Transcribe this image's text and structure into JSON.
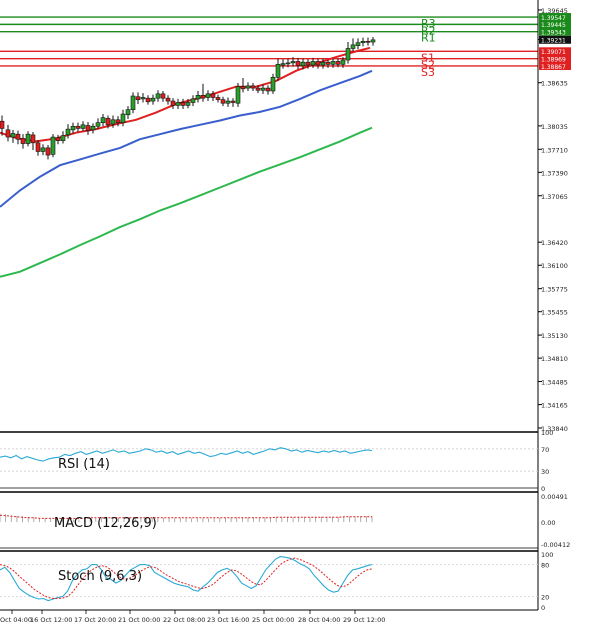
{
  "chart_data": {
    "type": "candlestick",
    "main": {
      "y_axis_ticks": [
        "1.39645",
        "1.39235",
        "1.38635",
        "1.38035",
        "1.37710",
        "1.37390",
        "1.37065",
        "1.36420",
        "1.36100",
        "1.35775",
        "1.35455",
        "1.35130",
        "1.34810",
        "1.34485",
        "1.34165",
        "1.33840"
      ],
      "current_price": "1.39231",
      "levels": [
        {
          "name": "R3",
          "value": 1.39547,
          "label": "1.39547",
          "color": "#1a8a1a"
        },
        {
          "name": "R2",
          "value": 1.39445,
          "label": "1.39445",
          "color": "#1a8a1a"
        },
        {
          "name": "R1",
          "value": 1.39343,
          "label": "1.39343",
          "color": "#1a8a1a"
        },
        {
          "name": "S1",
          "value": 1.39071,
          "label": "1.39071",
          "color": "#e02020"
        },
        {
          "name": "S2",
          "value": 1.38969,
          "label": "1.38969",
          "color": "#e02020"
        },
        {
          "name": "S3",
          "value": 1.38867,
          "label": "1.38867",
          "color": "#e02020"
        }
      ],
      "moving_averages": [
        {
          "color": "#e02020",
          "points": [
            [
              0,
              1.3794
            ],
            [
              18,
              1.3786
            ],
            [
              36,
              1.3782
            ],
            [
              56,
              1.3786
            ],
            [
              76,
              1.3794
            ],
            [
              96,
              1.3799
            ],
            [
              116,
              1.3806
            ],
            [
              136,
              1.3812
            ],
            [
              156,
              1.3822
            ],
            [
              176,
              1.3834
            ],
            [
              196,
              1.3841
            ],
            [
              216,
              1.3849
            ],
            [
              236,
              1.3858
            ],
            [
              256,
              1.3858
            ],
            [
              276,
              1.3866
            ],
            [
              296,
              1.388
            ],
            [
              316,
              1.389
            ],
            [
              336,
              1.3899
            ],
            [
              356,
              1.3907
            ],
            [
              370,
              1.3912
            ]
          ]
        },
        {
          "color": "#3a5fcd",
          "points": [
            [
              0,
              1.3691
            ],
            [
              20,
              1.3714
            ],
            [
              40,
              1.3733
            ],
            [
              60,
              1.3749
            ],
            [
              80,
              1.3757
            ],
            [
              100,
              1.3765
            ],
            [
              120,
              1.3773
            ],
            [
              140,
              1.3785
            ],
            [
              160,
              1.3792
            ],
            [
              180,
              1.3799
            ],
            [
              200,
              1.3805
            ],
            [
              220,
              1.3811
            ],
            [
              240,
              1.3818
            ],
            [
              260,
              1.3823
            ],
            [
              280,
              1.383
            ],
            [
              300,
              1.3841
            ],
            [
              320,
              1.3853
            ],
            [
              340,
              1.3863
            ],
            [
              360,
              1.3873
            ],
            [
              372,
              1.388
            ]
          ]
        },
        {
          "color": "#2db84d",
          "points": [
            [
              0,
              1.3594
            ],
            [
              20,
              1.3601
            ],
            [
              40,
              1.3613
            ],
            [
              60,
              1.3625
            ],
            [
              80,
              1.3638
            ],
            [
              100,
              1.365
            ],
            [
              120,
              1.3663
            ],
            [
              140,
              1.3674
            ],
            [
              160,
              1.3686
            ],
            [
              180,
              1.3696
            ],
            [
              200,
              1.3707
            ],
            [
              220,
              1.3718
            ],
            [
              240,
              1.3729
            ],
            [
              260,
              1.374
            ],
            [
              280,
              1.375
            ],
            [
              300,
              1.376
            ],
            [
              320,
              1.3771
            ],
            [
              340,
              1.3782
            ],
            [
              360,
              1.3794
            ],
            [
              372,
              1.3801
            ]
          ]
        }
      ],
      "candles": [
        [
          0,
          1.381,
          1.38,
          1.3818,
          1.379
        ],
        [
          6,
          1.3798,
          1.3788,
          1.3805,
          1.3782
        ],
        [
          11,
          1.3788,
          1.3793,
          1.3798,
          1.378
        ],
        [
          16,
          1.3792,
          1.3785,
          1.3797,
          1.3778
        ],
        [
          21,
          1.3786,
          1.3779,
          1.3792,
          1.3772
        ],
        [
          26,
          1.3779,
          1.3792,
          1.3796,
          1.3775
        ],
        [
          31,
          1.3791,
          1.378,
          1.3795,
          1.377
        ],
        [
          36,
          1.378,
          1.3768,
          1.3784,
          1.3762
        ],
        [
          41,
          1.3768,
          1.3773,
          1.3778,
          1.3763
        ],
        [
          46,
          1.3773,
          1.3763,
          1.3777,
          1.3757
        ],
        [
          51,
          1.3764,
          1.3788,
          1.3792,
          1.376
        ],
        [
          56,
          1.3787,
          1.3783,
          1.3791,
          1.3778
        ],
        [
          61,
          1.3783,
          1.379,
          1.3796,
          1.3779
        ],
        [
          66,
          1.3791,
          1.3799,
          1.3806,
          1.3786
        ],
        [
          71,
          1.3798,
          1.3803,
          1.3808,
          1.3793
        ],
        [
          76,
          1.3803,
          1.38,
          1.3808,
          1.3795
        ],
        [
          81,
          1.38,
          1.3805,
          1.381,
          1.3796
        ],
        [
          86,
          1.3804,
          1.3797,
          1.3809,
          1.3791
        ],
        [
          91,
          1.3798,
          1.3803,
          1.3807,
          1.3793
        ],
        [
          96,
          1.3803,
          1.3808,
          1.3814,
          1.3799
        ],
        [
          101,
          1.3808,
          1.3815,
          1.382,
          1.3803
        ],
        [
          106,
          1.3814,
          1.3805,
          1.3818,
          1.38
        ],
        [
          111,
          1.3806,
          1.3812,
          1.3818,
          1.3801
        ],
        [
          116,
          1.3812,
          1.3808,
          1.3817,
          1.3803
        ],
        [
          121,
          1.3808,
          1.382,
          1.3826,
          1.3803
        ],
        [
          126,
          1.3819,
          1.3826,
          1.3831,
          1.3813
        ],
        [
          131,
          1.3826,
          1.3845,
          1.385,
          1.3821
        ],
        [
          136,
          1.3844,
          1.384,
          1.385,
          1.3834
        ],
        [
          141,
          1.3841,
          1.3843,
          1.3849,
          1.3836
        ],
        [
          146,
          1.3842,
          1.3837,
          1.3846,
          1.3833
        ],
        [
          151,
          1.3838,
          1.3842,
          1.3847,
          1.3833
        ],
        [
          156,
          1.3842,
          1.3848,
          1.3853,
          1.3837
        ],
        [
          161,
          1.3848,
          1.3842,
          1.3852,
          1.3837
        ],
        [
          166,
          1.3842,
          1.3838,
          1.3846,
          1.3833
        ],
        [
          171,
          1.3838,
          1.3832,
          1.3842,
          1.3827
        ],
        [
          176,
          1.3832,
          1.3836,
          1.3841,
          1.3827
        ],
        [
          181,
          1.3836,
          1.3832,
          1.3841,
          1.3827
        ],
        [
          186,
          1.3832,
          1.3836,
          1.3841,
          1.3828
        ],
        [
          191,
          1.3836,
          1.3841,
          1.3846,
          1.3831
        ],
        [
          196,
          1.3841,
          1.3846,
          1.3852,
          1.3836
        ],
        [
          201,
          1.3846,
          1.3842,
          1.3862,
          1.3837
        ],
        [
          206,
          1.3843,
          1.3848,
          1.3853,
          1.3838
        ],
        [
          211,
          1.3848,
          1.3843,
          1.3852,
          1.3838
        ],
        [
          216,
          1.3843,
          1.384,
          1.3847,
          1.3836
        ],
        [
          221,
          1.384,
          1.3835,
          1.3844,
          1.3831
        ],
        [
          226,
          1.3835,
          1.3838,
          1.3843,
          1.383
        ],
        [
          231,
          1.3838,
          1.3836,
          1.3842,
          1.383
        ],
        [
          236,
          1.3835,
          1.3858,
          1.3863,
          1.383
        ],
        [
          241,
          1.3858,
          1.3855,
          1.387,
          1.385
        ],
        [
          246,
          1.3856,
          1.3859,
          1.3864,
          1.3852
        ],
        [
          251,
          1.3859,
          1.3856,
          1.3863,
          1.3852
        ],
        [
          256,
          1.3856,
          1.3853,
          1.386,
          1.3849
        ],
        [
          261,
          1.3853,
          1.3856,
          1.3861,
          1.3848
        ],
        [
          266,
          1.3856,
          1.3852,
          1.386,
          1.3847
        ],
        [
          271,
          1.3852,
          1.3871,
          1.3876,
          1.3848
        ],
        [
          276,
          1.3871,
          1.3889,
          1.3897,
          1.3866
        ],
        [
          281,
          1.3888,
          1.389,
          1.3896,
          1.3883
        ],
        [
          286,
          1.389,
          1.3891,
          1.3897,
          1.3885
        ],
        [
          291,
          1.3891,
          1.3893,
          1.3899,
          1.3886
        ],
        [
          296,
          1.3893,
          1.3887,
          1.3898,
          1.3882
        ],
        [
          301,
          1.3887,
          1.3892,
          1.3897,
          1.3882
        ],
        [
          306,
          1.3892,
          1.3888,
          1.3896,
          1.3883
        ],
        [
          311,
          1.3888,
          1.3893,
          1.3898,
          1.3884
        ],
        [
          316,
          1.3893,
          1.3888,
          1.3897,
          1.3883
        ],
        [
          321,
          1.3888,
          1.3892,
          1.3897,
          1.3883
        ],
        [
          326,
          1.3892,
          1.3889,
          1.3895,
          1.3884
        ],
        [
          331,
          1.3889,
          1.3893,
          1.3897,
          1.3884
        ],
        [
          336,
          1.3893,
          1.3889,
          1.3897,
          1.3885
        ],
        [
          341,
          1.3889,
          1.3895,
          1.3899,
          1.3884
        ],
        [
          346,
          1.3895,
          1.3911,
          1.392,
          1.389
        ],
        [
          351,
          1.3911,
          1.3916,
          1.3925,
          1.3907
        ],
        [
          356,
          1.3915,
          1.3919,
          1.3925,
          1.391
        ],
        [
          361,
          1.3919,
          1.3921,
          1.3926,
          1.3914
        ],
        [
          366,
          1.3921,
          1.392,
          1.3926,
          1.3915
        ],
        [
          371,
          1.392,
          1.3923,
          1.3927,
          1.3915
        ]
      ]
    },
    "rsi": {
      "label": "RSI (14)",
      "ticks": [
        "100",
        "70",
        "30",
        "0"
      ],
      "values": [
        55,
        57,
        54,
        58,
        52,
        56,
        53,
        50,
        48,
        52,
        54,
        55,
        60,
        58,
        62,
        65,
        60,
        63,
        66,
        62,
        65,
        68,
        64,
        66,
        62,
        64,
        66,
        70,
        68,
        64,
        66,
        62,
        65,
        60,
        63,
        66,
        62,
        64,
        60,
        56,
        58,
        62,
        60,
        63,
        66,
        62,
        65,
        60,
        63,
        66,
        70,
        68,
        72,
        70,
        66,
        68,
        64,
        67,
        65,
        63,
        66,
        64,
        67,
        64,
        66,
        62,
        64,
        66,
        68,
        67
      ]
    },
    "macd": {
      "label": "MACD (12,26,9)",
      "ticks": [
        "0.00491",
        "0.00",
        "-0.00412"
      ],
      "histogram": [
        0.0016,
        0.0015,
        0.0013,
        0.0012,
        0.0011,
        0.001,
        0.0009,
        0.0008,
        0.0007,
        0.0006,
        0.0006,
        0.0005,
        0.0005,
        0.0005,
        0.0005,
        0.0006,
        0.0006,
        0.0007,
        0.0007,
        0.0007,
        0.0008,
        0.0008,
        0.0008,
        0.0008,
        0.0009,
        0.0009,
        0.0009,
        0.0009,
        0.0009,
        0.0008,
        0.0008,
        0.0008,
        0.0008,
        0.0008,
        0.0007,
        0.0007,
        0.0007,
        0.0007,
        0.0007,
        0.0008,
        0.0008,
        0.0008,
        0.0009,
        0.0009,
        0.0009,
        0.0009,
        0.0009,
        0.0009,
        0.0009,
        0.0009,
        0.0009,
        0.0009,
        0.0009,
        0.0009,
        0.0009,
        0.0009,
        0.001,
        0.001,
        0.001,
        0.001,
        0.001,
        0.001,
        0.001,
        0.001,
        0.0011,
        0.0011,
        0.0011
      ],
      "signal": [
        0.0013,
        0.0012,
        0.0011,
        0.001,
        0.0009,
        0.0008,
        0.0008,
        0.0007,
        0.0007,
        0.0007,
        0.0007,
        0.0007,
        0.0007,
        0.0007,
        0.0007,
        0.0007,
        0.0008,
        0.0008,
        0.0008,
        0.0008,
        0.0008,
        0.0008,
        0.0008,
        0.0008,
        0.0008,
        0.0008,
        0.0008,
        0.0008,
        0.0008,
        0.0008,
        0.0008,
        0.0008,
        0.0008,
        0.0008,
        0.0008,
        0.0008,
        0.0008,
        0.0008,
        0.0008,
        0.0008,
        0.0008,
        0.0008,
        0.0008,
        0.0008,
        0.0008,
        0.0008,
        0.0008,
        0.0008,
        0.0008,
        0.0009,
        0.0009,
        0.0009,
        0.0009,
        0.0009,
        0.0009,
        0.0009,
        0.0009,
        0.0009,
        0.0009,
        0.0009,
        0.0009,
        0.001,
        0.001,
        0.001,
        0.001,
        0.001,
        0.001
      ]
    },
    "stoch": {
      "label": "Stoch (9,6,3)",
      "ticks": [
        "100",
        "80",
        "20",
        "0"
      ],
      "k": [
        70,
        75,
        65,
        50,
        35,
        28,
        22,
        18,
        15,
        16,
        12,
        15,
        18,
        20,
        30,
        50,
        62,
        70,
        72,
        80,
        80,
        70,
        55,
        52,
        45,
        50,
        60,
        70,
        75,
        80,
        80,
        78,
        65,
        60,
        55,
        50,
        45,
        42,
        40,
        38,
        32,
        30,
        38,
        45,
        55,
        65,
        70,
        73,
        68,
        58,
        45,
        40,
        35,
        40,
        55,
        70,
        80,
        90,
        95,
        94,
        92,
        88,
        82,
        78,
        72,
        60,
        50,
        40,
        32,
        28,
        30,
        45,
        60,
        70,
        72,
        75,
        78,
        80
      ],
      "d": [
        80,
        78,
        74,
        67,
        58,
        50,
        42,
        34,
        28,
        22,
        18,
        16,
        16,
        17,
        20,
        28,
        40,
        52,
        62,
        70,
        75,
        78,
        76,
        70,
        62,
        55,
        52,
        55,
        60,
        67,
        72,
        76,
        75,
        70,
        63,
        58,
        53,
        48,
        45,
        42,
        39,
        36,
        35,
        38,
        42,
        50,
        58,
        65,
        70,
        68,
        62,
        55,
        48,
        43,
        42,
        50,
        60,
        70,
        80,
        86,
        90,
        92,
        90,
        86,
        82,
        77,
        70,
        62,
        54,
        46,
        40,
        38,
        42,
        50,
        58,
        65,
        70,
        72
      ]
    },
    "x_axis_ticks": [
      "Oct 04:00",
      "16 Oct 12:00",
      "17 Oct 20:00",
      "21 Oct 00:00",
      "22 Oct 08:00",
      "23 Oct 16:00",
      "25 Oct 00:00",
      "28 Oct 04:00",
      "29 Oct 12:00"
    ],
    "colors": {
      "bull": "#2aa02a",
      "bear": "#e02020",
      "candle_outline": "#111111",
      "indicator_line": "#2aa9d6",
      "indicator_signal": "#e02020",
      "grid": "#d0d0d0"
    }
  }
}
